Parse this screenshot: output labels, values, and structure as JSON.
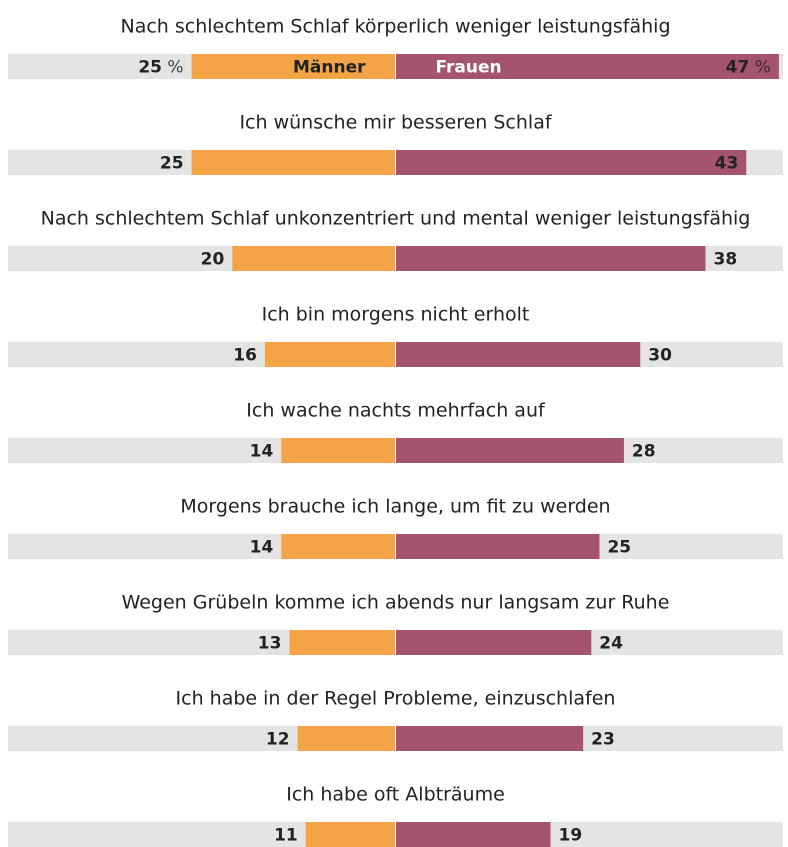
{
  "chart_data": {
    "type": "butterfly",
    "categories": [
      "Nach schlechtem Schlaf körperlich weniger leistungsfähig",
      "Ich wünsche mir besseren Schlaf",
      "Nach schlechtem Schlaf unkonzentriert und mental weniger leistungsfähig",
      "Ich bin morgens nicht erholt",
      "Ich wache nachts mehrfach auf",
      "Morgens brauche ich lange, um fit zu werden",
      "Wegen Grübeln komme ich abends nur langsam zur Ruhe",
      "Ich habe in der Regel Probleme, einzuschlafen",
      "Ich habe oft Albträume"
    ],
    "series": [
      {
        "name": "Männer",
        "color": "#f5a347",
        "values": [
          25,
          25,
          20,
          16,
          14,
          14,
          13,
          12,
          11
        ],
        "value_labels": [
          "25 %",
          "25",
          "20",
          "16",
          "14",
          "14",
          "13",
          "12",
          "11"
        ]
      },
      {
        "name": "Frauen",
        "color": "#a4546f",
        "values": [
          47,
          43,
          38,
          30,
          28,
          25,
          24,
          23,
          19
        ],
        "value_labels": [
          "47 %",
          "43",
          "38",
          "30",
          "28",
          "25",
          "24",
          "23",
          "19"
        ]
      }
    ],
    "xlim": [
      -47.5,
      47.5
    ],
    "track_color": "#e4e4e4"
  }
}
